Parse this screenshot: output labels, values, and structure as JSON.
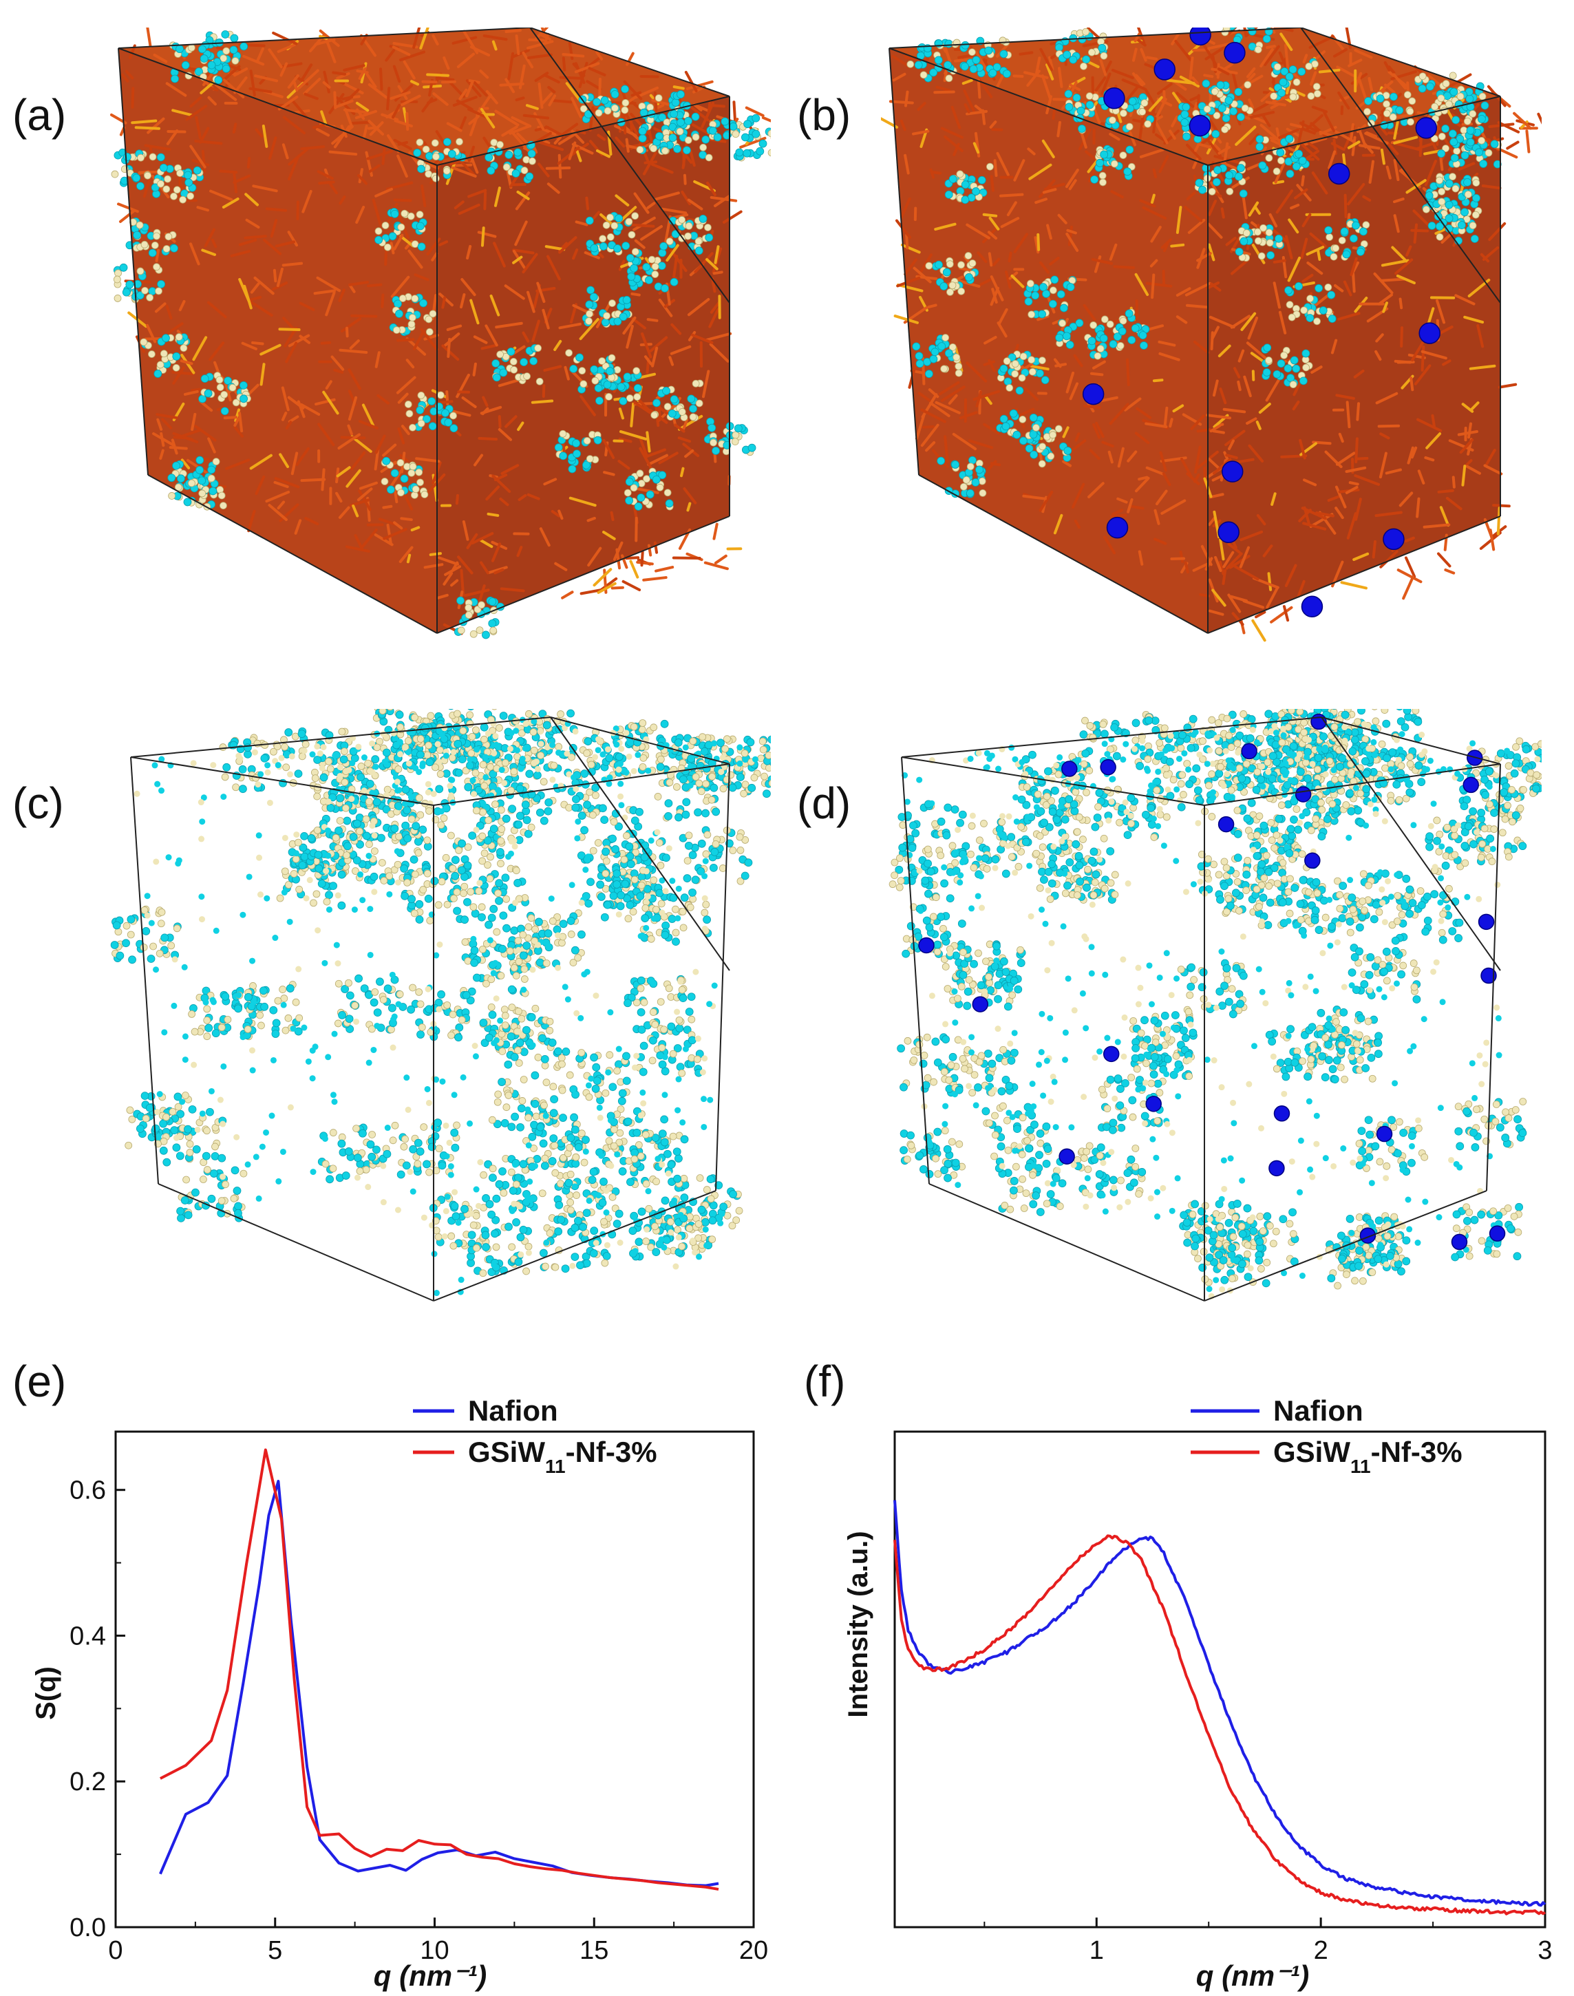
{
  "panels": {
    "a": {
      "label": "(a)"
    },
    "b": {
      "label": "(b)"
    },
    "c": {
      "label": "(c)"
    },
    "d": {
      "label": "(d)"
    },
    "e": {
      "label": "(e)"
    },
    "f": {
      "label": "(f)"
    }
  },
  "colors": {
    "nafion": "#1f1fe6",
    "gsiw": "#e61e1e",
    "polymer": "#d9480f",
    "sidechain": "#0fd1e3",
    "water": "#efe6b8",
    "ion": "#1010e0",
    "frame": "#222222"
  },
  "chart_data": [
    {
      "type": "line",
      "title": "",
      "xlabel": "q (nm⁻¹)",
      "ylabel": "S(q)",
      "xlim": [
        0,
        20
      ],
      "ylim": [
        0,
        0.68
      ],
      "xticks": [
        "0",
        "5",
        "10",
        "15",
        "20"
      ],
      "yticks": [
        "0.0",
        "0.2",
        "0.4",
        "0.6"
      ],
      "legend": "top-right",
      "series": [
        {
          "name": "Nafion",
          "x": [
            1.4,
            2.2,
            2.9,
            3.5,
            4.0,
            4.5,
            4.8,
            5.1,
            5.5,
            6.0,
            6.4,
            7.0,
            7.6,
            8.1,
            8.6,
            9.1,
            9.6,
            10.1,
            10.7,
            11.3,
            11.9,
            12.5,
            13.1,
            13.7,
            14.3,
            14.9,
            15.5,
            16.1,
            16.7,
            17.3,
            17.9,
            18.5,
            18.9
          ],
          "values": [
            0.073,
            0.155,
            0.171,
            0.208,
            0.335,
            0.47,
            0.565,
            0.612,
            0.42,
            0.22,
            0.12,
            0.088,
            0.077,
            0.081,
            0.085,
            0.078,
            0.093,
            0.102,
            0.106,
            0.098,
            0.103,
            0.094,
            0.089,
            0.084,
            0.075,
            0.071,
            0.068,
            0.066,
            0.063,
            0.061,
            0.058,
            0.057,
            0.06
          ]
        },
        {
          "name": "GSiW11-Nf-3%",
          "x": [
            1.4,
            2.2,
            3.0,
            3.5,
            4.1,
            4.7,
            5.2,
            5.6,
            6.0,
            6.4,
            7.0,
            7.5,
            8.0,
            8.5,
            9.0,
            9.5,
            10.0,
            10.5,
            11.0,
            11.5,
            12.0,
            12.5,
            13.0,
            13.5,
            14.0,
            14.5,
            15.0,
            15.5,
            16.0,
            16.5,
            17.0,
            17.5,
            18.0,
            18.5,
            18.9
          ],
          "values": [
            0.204,
            0.222,
            0.256,
            0.325,
            0.498,
            0.655,
            0.56,
            0.34,
            0.165,
            0.126,
            0.128,
            0.108,
            0.097,
            0.107,
            0.105,
            0.119,
            0.114,
            0.113,
            0.1,
            0.096,
            0.094,
            0.087,
            0.083,
            0.08,
            0.078,
            0.074,
            0.071,
            0.068,
            0.066,
            0.064,
            0.061,
            0.059,
            0.057,
            0.055,
            0.052
          ]
        }
      ]
    },
    {
      "type": "line",
      "title": "",
      "xlabel": "q (nm⁻¹)",
      "ylabel": "Intensity (a.u.)",
      "xlim": [
        0.1,
        3
      ],
      "ylim": [
        0,
        1
      ],
      "xticks": [
        "1",
        "2",
        "3"
      ],
      "yticks": [],
      "legend": "top-right",
      "series": [
        {
          "name": "Nafion",
          "x": [
            0.1,
            0.13,
            0.16,
            0.2,
            0.25,
            0.3,
            0.35,
            0.4,
            0.5,
            0.6,
            0.7,
            0.8,
            0.9,
            1.0,
            1.1,
            1.2,
            1.25,
            1.3,
            1.4,
            1.5,
            1.6,
            1.7,
            1.8,
            1.9,
            2.0,
            2.1,
            2.2,
            2.4,
            2.6,
            2.8,
            3.0
          ],
          "values": [
            0.86,
            0.68,
            0.6,
            0.56,
            0.53,
            0.52,
            0.515,
            0.52,
            0.535,
            0.555,
            0.585,
            0.615,
            0.655,
            0.705,
            0.755,
            0.785,
            0.785,
            0.755,
            0.655,
            0.53,
            0.41,
            0.305,
            0.225,
            0.165,
            0.125,
            0.1,
            0.085,
            0.067,
            0.057,
            0.05,
            0.046
          ]
        },
        {
          "name": "GSiW11-Nf-3%",
          "x": [
            0.1,
            0.13,
            0.16,
            0.2,
            0.25,
            0.3,
            0.35,
            0.4,
            0.5,
            0.6,
            0.7,
            0.8,
            0.9,
            1.0,
            1.05,
            1.1,
            1.15,
            1.2,
            1.3,
            1.4,
            1.5,
            1.6,
            1.7,
            1.8,
            1.9,
            2.0,
            2.1,
            2.2,
            2.4,
            2.6,
            2.8,
            3.0
          ],
          "values": [
            0.78,
            0.62,
            0.56,
            0.53,
            0.52,
            0.52,
            0.525,
            0.535,
            0.56,
            0.595,
            0.635,
            0.685,
            0.735,
            0.775,
            0.79,
            0.785,
            0.77,
            0.74,
            0.64,
            0.51,
            0.385,
            0.275,
            0.195,
            0.135,
            0.095,
            0.07,
            0.055,
            0.047,
            0.038,
            0.034,
            0.03,
            0.03
          ]
        }
      ]
    }
  ]
}
